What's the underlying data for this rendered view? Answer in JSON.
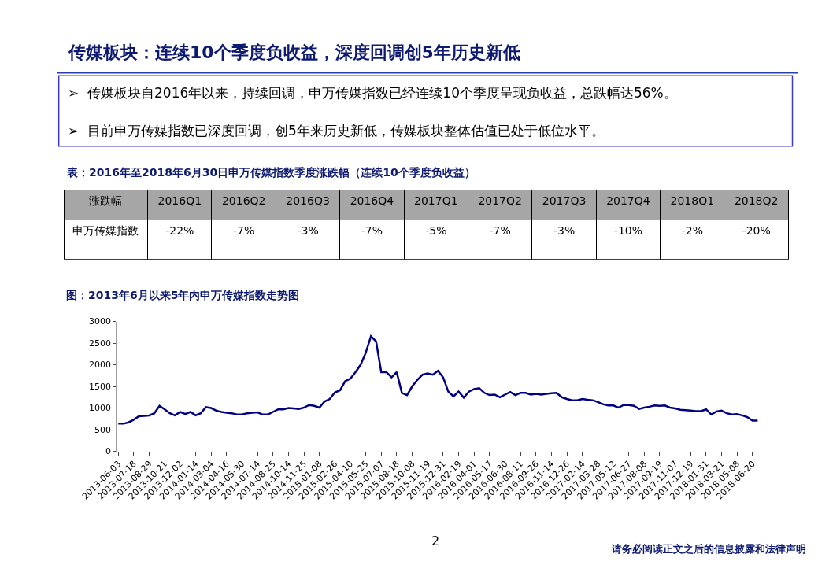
{
  "chart_data": [
    {
      "type": "other",
      "title": "传媒板块：连续10个季度负收益，深度回调创5年历史新低",
      "annotations": [
        "➢  传媒板块自2016年以来，持续回调，申万传媒指数已经连续10个季度呈现负收益，总跌幅达56%。",
        "➢  目前申万传媒指数已深度回调，创5年来历史新低，传媒板块整体估值已处于低位水平。",
        "2",
        "请务必阅读正文之后的信息披露和法律声明"
      ]
    },
    {
      "type": "other",
      "title": "表：2016年至2018年6月30日申万传媒指数季度涨跌幅（连续10个季度负收益）",
      "annotations": [
        "涨跌幅"
      ],
      "categories": [
        "2016Q1",
        "2016Q2",
        "2016Q3",
        "2016Q4",
        "2017Q1",
        "2017Q2",
        "2017Q3",
        "2017Q4",
        "2018Q1",
        "2018Q2"
      ],
      "y_categories": [
        "申万传媒指数"
      ],
      "cell_labels": [
        [
          "-22%",
          "-7%",
          "-3%",
          "-7%",
          "-5%",
          "-7%",
          "-3%",
          "-10%",
          "-2%",
          "-20%"
        ]
      ]
    },
    {
      "type": "line",
      "title": "图：2013年6月以来5年内申万传媒指数走势图",
      "categories": [
        "2013-06-03",
        null,
        null,
        "2013-07-18",
        null,
        null,
        "2013-08-29",
        null,
        null,
        "2013-10-21",
        null,
        null,
        "2013-12-02",
        null,
        null,
        "2014-01-14",
        null,
        null,
        "2014-03-04",
        null,
        null,
        "2014-04-16",
        null,
        null,
        "2014-05-30",
        null,
        null,
        "2014-07-14",
        null,
        null,
        "2014-08-25",
        null,
        null,
        "2014-10-14",
        null,
        null,
        "2014-11-25",
        null,
        null,
        "2015-01-08",
        null,
        null,
        "2015-02-26",
        null,
        null,
        "2015-04-10",
        null,
        null,
        "2015-05-25",
        null,
        null,
        "2015-07-07",
        null,
        null,
        "2015-08-18",
        null,
        null,
        "2015-10-08",
        null,
        null,
        "2015-11-19",
        null,
        null,
        "2015-12-31",
        null,
        null,
        "2016-02-19",
        null,
        null,
        "2016-04-01",
        null,
        null,
        "2016-05-17",
        null,
        null,
        "2016-06-30",
        null,
        null,
        "2016-08-11",
        null,
        null,
        "2016-09-26",
        null,
        null,
        "2016-11-14",
        null,
        null,
        "2016-12-26",
        null,
        null,
        "2017-02-14",
        null,
        null,
        "2017-03-28",
        null,
        null,
        "2017-05-12",
        null,
        null,
        "2017-06-27",
        null,
        null,
        "2017-08-08",
        null,
        null,
        "2017-09-19",
        null,
        null,
        "2017-11-07",
        null,
        null,
        "2017-12-19",
        null,
        null,
        "2018-01-31",
        null,
        null,
        "2018-03-21",
        null,
        null,
        "2018-05-08",
        null,
        null,
        "2018-06-20",
        null
      ],
      "series": [
        {
          "color": "#000080",
          "values": [
            640,
            640,
            670,
            730,
            810,
            820,
            830,
            880,
            1050,
            970,
            880,
            830,
            910,
            860,
            910,
            830,
            880,
            1020,
            1000,
            940,
            910,
            890,
            880,
            850,
            850,
            880,
            890,
            900,
            850,
            850,
            910,
            970,
            970,
            1000,
            990,
            980,
            1010,
            1070,
            1050,
            1010,
            1150,
            1210,
            1360,
            1410,
            1620,
            1680,
            1830,
            2000,
            2280,
            2660,
            2540,
            1830,
            1830,
            1710,
            1830,
            1350,
            1300,
            1500,
            1650,
            1770,
            1800,
            1770,
            1860,
            1710,
            1380,
            1270,
            1380,
            1240,
            1380,
            1440,
            1460,
            1350,
            1300,
            1310,
            1250,
            1310,
            1370,
            1300,
            1350,
            1350,
            1310,
            1330,
            1310,
            1330,
            1340,
            1350,
            1250,
            1210,
            1180,
            1180,
            1210,
            1190,
            1180,
            1140,
            1090,
            1060,
            1060,
            1010,
            1070,
            1070,
            1050,
            980,
            1010,
            1030,
            1060,
            1050,
            1060,
            1010,
            990,
            960,
            950,
            940,
            930,
            930,
            970,
            850,
            920,
            940,
            880,
            850,
            860,
            830,
            790,
            710,
            710
          ]
        }
      ],
      "ylim": [
        0,
        3000
      ],
      "yticks": [
        0,
        500,
        1000,
        1500,
        2000,
        2500,
        3000
      ]
    }
  ]
}
